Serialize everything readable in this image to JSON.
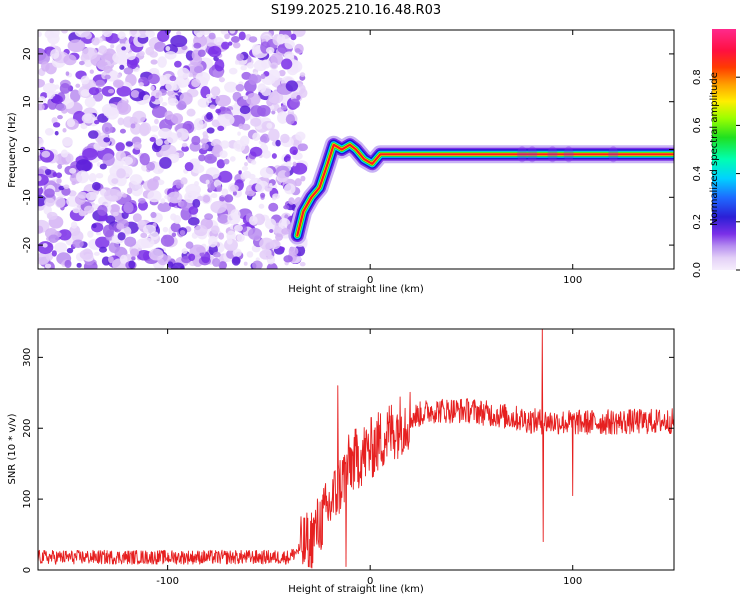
{
  "title": "S199.2025.210.16.48.R03",
  "chart_data": [
    {
      "type": "heatmap",
      "xlabel": "Height of straight line (km)",
      "ylabel": "Frequency (Hz)",
      "xlim": [
        -164,
        150
      ],
      "ylim": [
        -25,
        25
      ],
      "x_ticks": [
        -100,
        0,
        100
      ],
      "y_ticks": [
        -20,
        -10,
        0,
        10,
        20
      ],
      "colorbar": {
        "label": "Normalized spectral amplitude",
        "range": [
          0,
          1
        ],
        "ticks": [
          "0.0",
          "0.2",
          "0.4",
          "0.6",
          "0.8"
        ],
        "colormap": "rainbow"
      },
      "noise_region_x": [
        -164,
        -36
      ],
      "ridge": [
        {
          "x": -36,
          "y": -18
        },
        {
          "x": -33,
          "y": -13
        },
        {
          "x": -29,
          "y": -10
        },
        {
          "x": -25,
          "y": -8
        },
        {
          "x": -21,
          "y": -3
        },
        {
          "x": -18,
          "y": 1
        },
        {
          "x": -14,
          "y": 0
        },
        {
          "x": -10,
          "y": 1
        },
        {
          "x": -7,
          "y": 0
        },
        {
          "x": -3,
          "y": -2
        },
        {
          "x": 1,
          "y": -3
        },
        {
          "x": 5,
          "y": -1
        },
        {
          "x": 9,
          "y": -1
        },
        {
          "x": 13,
          "y": -1
        },
        {
          "x": 150,
          "y": -1
        }
      ]
    },
    {
      "type": "line",
      "xlabel": "Height of straight line (km)",
      "ylabel": "SNR (10 * v/v)",
      "xlim": [
        -164,
        150
      ],
      "ylim": [
        0,
        340
      ],
      "x_ticks": [
        -100,
        0,
        100
      ],
      "y_ticks": [
        0,
        100,
        200,
        300
      ],
      "color": "#e62020",
      "envelope": [
        {
          "x": -164,
          "y": 18
        },
        {
          "x": -40,
          "y": 18
        },
        {
          "x": -30,
          "y": 40
        },
        {
          "x": -20,
          "y": 90
        },
        {
          "x": -10,
          "y": 150
        },
        {
          "x": 0,
          "y": 170
        },
        {
          "x": 10,
          "y": 195
        },
        {
          "x": 20,
          "y": 215
        },
        {
          "x": 30,
          "y": 225
        },
        {
          "x": 50,
          "y": 225
        },
        {
          "x": 80,
          "y": 210
        },
        {
          "x": 100,
          "y": 208
        },
        {
          "x": 150,
          "y": 210
        }
      ],
      "spikes": [
        {
          "x": -16,
          "y": 260
        },
        {
          "x": -12,
          "y": 5
        },
        {
          "x": 85,
          "y": 345
        },
        {
          "x": 85.5,
          "y": 40
        },
        {
          "x": 100,
          "y": 105
        }
      ]
    }
  ]
}
